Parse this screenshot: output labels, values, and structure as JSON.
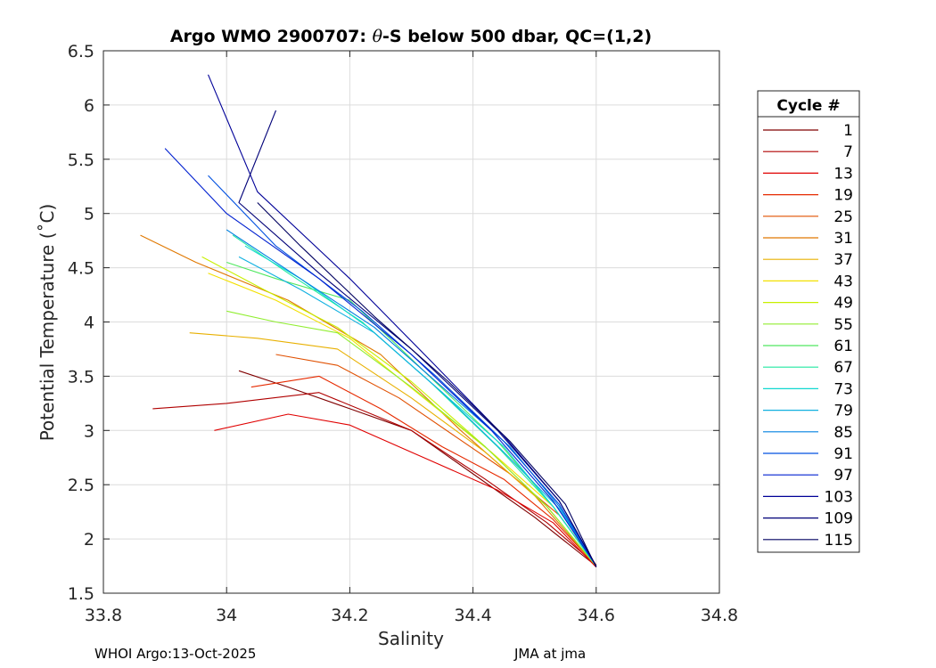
{
  "chart_data": {
    "type": "line",
    "title": "Argo WMO 2900707: θ-S below 500 dbar,  QC=(1,2)",
    "title_parts": {
      "prefix": "Argo WMO 2900707: ",
      "theta": "θ",
      "suffix": "-S below 500 dbar,  QC=(1,2)"
    },
    "xlabel": "Salinity",
    "ylabel": "Potential Temperature (˚C)",
    "xlim": [
      33.8,
      34.8
    ],
    "ylim": [
      1.5,
      6.5
    ],
    "xticks": [
      "33.8",
      "34",
      "34.2",
      "34.4",
      "34.6",
      "34.8"
    ],
    "yticks": [
      "1.5",
      "2",
      "2.5",
      "3",
      "3.5",
      "4",
      "4.5",
      "5",
      "5.5",
      "6",
      "6.5"
    ],
    "grid": true,
    "legend": {
      "title": "Cycle #",
      "placement": "right",
      "entries": [
        {
          "label": "1",
          "color": "#800000"
        },
        {
          "label": "7",
          "color": "#b00000"
        },
        {
          "label": "13",
          "color": "#e00000"
        },
        {
          "label": "19",
          "color": "#e62a00"
        },
        {
          "label": "25",
          "color": "#e05000"
        },
        {
          "label": "31",
          "color": "#e07800"
        },
        {
          "label": "37",
          "color": "#e8b000"
        },
        {
          "label": "43",
          "color": "#f2e000"
        },
        {
          "label": "49",
          "color": "#c8f000"
        },
        {
          "label": "55",
          "color": "#90ee30"
        },
        {
          "label": "61",
          "color": "#50e860"
        },
        {
          "label": "67",
          "color": "#20e8a0"
        },
        {
          "label": "73",
          "color": "#10d8d0"
        },
        {
          "label": "79",
          "color": "#10b0e0"
        },
        {
          "label": "85",
          "color": "#0080e0"
        },
        {
          "label": "91",
          "color": "#0050e0"
        },
        {
          "label": "97",
          "color": "#0020d0"
        },
        {
          "label": "103",
          "color": "#000098"
        },
        {
          "label": "109",
          "color": "#000078"
        },
        {
          "label": "115",
          "color": "#000060"
        }
      ]
    },
    "series": [
      {
        "name": "1",
        "color": "#800000",
        "x": [
          34.02,
          34.1,
          34.2,
          34.3,
          34.4,
          34.5,
          34.6
        ],
        "y": [
          3.55,
          3.4,
          3.2,
          3.0,
          2.6,
          2.2,
          1.75
        ]
      },
      {
        "name": "7",
        "color": "#b00000",
        "x": [
          33.88,
          34.0,
          34.15,
          34.3,
          34.42,
          34.52,
          34.6
        ],
        "y": [
          3.2,
          3.25,
          3.35,
          3.0,
          2.55,
          2.15,
          1.76
        ]
      },
      {
        "name": "13",
        "color": "#e00000",
        "x": [
          33.98,
          34.1,
          34.2,
          34.32,
          34.44,
          34.53,
          34.6
        ],
        "y": [
          3.0,
          3.15,
          3.05,
          2.75,
          2.45,
          2.15,
          1.74
        ]
      },
      {
        "name": "19",
        "color": "#e62a00",
        "x": [
          34.04,
          34.15,
          34.25,
          34.35,
          34.45,
          34.53,
          34.6
        ],
        "y": [
          3.4,
          3.5,
          3.2,
          2.85,
          2.55,
          2.18,
          1.75
        ]
      },
      {
        "name": "25",
        "color": "#e05000",
        "x": [
          34.08,
          34.18,
          34.28,
          34.37,
          34.46,
          34.54,
          34.6
        ],
        "y": [
          3.7,
          3.6,
          3.3,
          2.95,
          2.6,
          2.22,
          1.76
        ]
      },
      {
        "name": "31",
        "color": "#e07800",
        "x": [
          33.86,
          33.95,
          34.1,
          34.25,
          34.38,
          34.5,
          34.6
        ],
        "y": [
          4.8,
          4.55,
          4.2,
          3.7,
          3.0,
          2.4,
          1.75
        ]
      },
      {
        "name": "37",
        "color": "#e8b000",
        "x": [
          33.94,
          34.05,
          34.18,
          34.3,
          34.42,
          34.52,
          34.6
        ],
        "y": [
          3.9,
          3.85,
          3.75,
          3.3,
          2.8,
          2.3,
          1.75
        ]
      },
      {
        "name": "43",
        "color": "#f2e000",
        "x": [
          33.97,
          34.08,
          34.2,
          34.32,
          34.43,
          34.53,
          34.6
        ],
        "y": [
          4.45,
          4.2,
          3.85,
          3.3,
          2.8,
          2.3,
          1.75
        ]
      },
      {
        "name": "49",
        "color": "#c8f000",
        "x": [
          33.96,
          34.06,
          34.18,
          34.3,
          34.42,
          34.52,
          34.6
        ],
        "y": [
          4.6,
          4.3,
          3.95,
          3.45,
          2.85,
          2.3,
          1.75
        ]
      },
      {
        "name": "55",
        "color": "#90ee30",
        "x": [
          34.0,
          34.08,
          34.18,
          34.3,
          34.42,
          34.52,
          34.6
        ],
        "y": [
          4.1,
          4.0,
          3.9,
          3.4,
          2.85,
          2.3,
          1.75
        ]
      },
      {
        "name": "61",
        "color": "#50e860",
        "x": [
          34.0,
          34.08,
          34.2,
          34.32,
          34.44,
          34.53,
          34.6
        ],
        "y": [
          4.55,
          4.4,
          4.2,
          3.55,
          2.9,
          2.3,
          1.75
        ]
      },
      {
        "name": "67",
        "color": "#20e8a0",
        "x": [
          34.01,
          34.1,
          34.22,
          34.33,
          34.44,
          34.53,
          34.6
        ],
        "y": [
          4.8,
          4.45,
          4.0,
          3.45,
          2.85,
          2.3,
          1.75
        ]
      },
      {
        "name": "73",
        "color": "#10d8d0",
        "x": [
          34.03,
          34.12,
          34.23,
          34.34,
          34.45,
          34.53,
          34.6
        ],
        "y": [
          4.7,
          4.4,
          3.95,
          3.4,
          2.85,
          2.3,
          1.75
        ]
      },
      {
        "name": "79",
        "color": "#10b0e0",
        "x": [
          34.02,
          34.12,
          34.24,
          34.35,
          34.45,
          34.54,
          34.6
        ],
        "y": [
          4.6,
          4.3,
          3.9,
          3.35,
          2.8,
          2.28,
          1.75
        ]
      },
      {
        "name": "85",
        "color": "#0080e0",
        "x": [
          34.0,
          34.12,
          34.24,
          34.35,
          34.46,
          34.54,
          34.6
        ],
        "y": [
          4.85,
          4.4,
          3.95,
          3.4,
          2.85,
          2.3,
          1.75
        ]
      },
      {
        "name": "91",
        "color": "#0050e0",
        "x": [
          33.97,
          34.08,
          34.22,
          34.34,
          34.45,
          34.54,
          34.6
        ],
        "y": [
          5.35,
          4.7,
          4.1,
          3.5,
          2.9,
          2.32,
          1.75
        ]
      },
      {
        "name": "97",
        "color": "#0020d0",
        "x": [
          33.9,
          34.0,
          34.15,
          34.3,
          34.43,
          34.53,
          34.6
        ],
        "y": [
          5.6,
          5.0,
          4.4,
          3.7,
          3.0,
          2.35,
          1.75
        ]
      },
      {
        "name": "103",
        "color": "#000098",
        "x": [
          33.97,
          34.05,
          34.2,
          34.33,
          34.45,
          34.54,
          34.6
        ],
        "y": [
          6.28,
          5.2,
          4.4,
          3.65,
          2.95,
          2.35,
          1.75
        ]
      },
      {
        "name": "109",
        "color": "#000078",
        "x": [
          34.08,
          34.02,
          34.15,
          34.3,
          34.44,
          34.54,
          34.6
        ],
        "y": [
          5.95,
          5.1,
          4.45,
          3.75,
          3.0,
          2.35,
          1.75
        ]
      },
      {
        "name": "115",
        "color": "#000060",
        "x": [
          34.05,
          34.12,
          34.24,
          34.36,
          34.46,
          34.55,
          34.6
        ],
        "y": [
          5.1,
          4.7,
          4.05,
          3.45,
          2.9,
          2.32,
          1.74
        ]
      }
    ]
  },
  "footer": {
    "left": "WHOI Argo:13-Oct-2025",
    "right": "JMA at jma"
  }
}
